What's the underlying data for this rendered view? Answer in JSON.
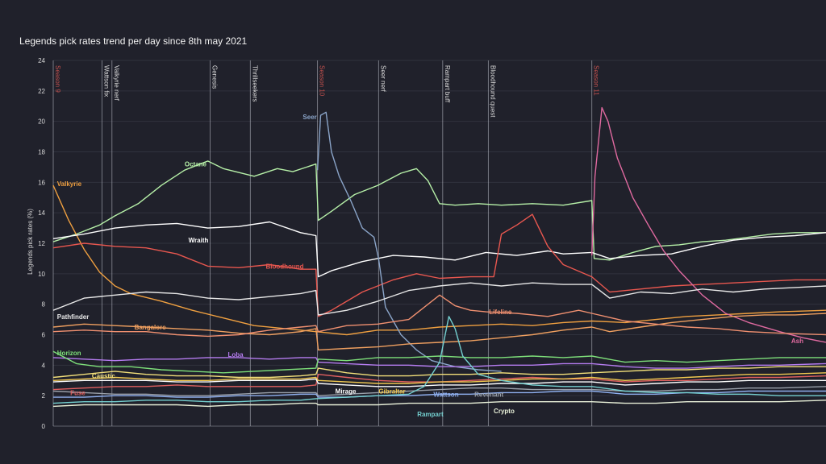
{
  "chart_data": {
    "type": "line",
    "title": "Legends pick rates trend per day since 8th may 2021",
    "xlabel": "",
    "ylabel": "Legends pick rates (%)",
    "ylim": [
      0,
      24
    ],
    "yticks": [
      0,
      2,
      4,
      6,
      8,
      10,
      12,
      14,
      16,
      18,
      20,
      22,
      24
    ],
    "xlim": [
      0,
      100
    ],
    "events": [
      {
        "x": 0,
        "label": "Season 9",
        "color": "#c0504d"
      },
      {
        "x": 6.3,
        "label": "Wattson fix",
        "color": "#d8d8d8"
      },
      {
        "x": 7.6,
        "label": "Valkyrie nerf",
        "color": "#d8d8d8"
      },
      {
        "x": 20.3,
        "label": "Genesis",
        "color": "#d8d8d8"
      },
      {
        "x": 25.5,
        "label": "Thrillseekers",
        "color": "#d8d8d8"
      },
      {
        "x": 34.2,
        "label": "Season 10",
        "color": "#c0504d"
      },
      {
        "x": 42.1,
        "label": "Seer nerf",
        "color": "#d8d8d8"
      },
      {
        "x": 50.4,
        "label": "Rampart buff",
        "color": "#d8d8d8"
      },
      {
        "x": 56.3,
        "label": "Bloodhound quest",
        "color": "#d8d8d8"
      },
      {
        "x": 69.7,
        "label": "Season 11",
        "color": "#c0504d"
      }
    ],
    "series": [
      {
        "name": "Octane",
        "color": "#b6f0a8",
        "label_at": [
          17,
          17.2
        ],
        "x": [
          0,
          3,
          6,
          8,
          11,
          14,
          17,
          20,
          22,
          26,
          29,
          31,
          34,
          34.3,
          36,
          39,
          42,
          45,
          47,
          48.5,
          50,
          52,
          55,
          58,
          62,
          66,
          69.7,
          70,
          72,
          75,
          78,
          81,
          84,
          87,
          90,
          93,
          96,
          100
        ],
        "y": [
          12.1,
          12.6,
          13.2,
          13.8,
          14.6,
          15.8,
          16.8,
          17.4,
          16.9,
          16.4,
          16.9,
          16.7,
          17.2,
          13.5,
          14.1,
          15.2,
          15.8,
          16.6,
          16.9,
          16.1,
          14.6,
          14.5,
          14.6,
          14.5,
          14.6,
          14.5,
          14.8,
          11.0,
          10.9,
          11.4,
          11.8,
          11.9,
          12.1,
          12.2,
          12.4,
          12.6,
          12.7,
          12.7
        ]
      },
      {
        "name": "Valkyrie",
        "color": "#f0a040",
        "label_at": [
          0.5,
          15.9
        ],
        "x": [
          0,
          2,
          4,
          6,
          8,
          10,
          14,
          18,
          22,
          26,
          30,
          34,
          38,
          42,
          46,
          50,
          54,
          58,
          62,
          66,
          69.7,
          74,
          78,
          82,
          86,
          90,
          94,
          100
        ],
        "y": [
          15.8,
          13.5,
          11.6,
          10.1,
          9.2,
          8.7,
          8.2,
          7.6,
          7.1,
          6.6,
          6.4,
          6.2,
          6.0,
          6.3,
          6.3,
          6.5,
          6.6,
          6.7,
          6.6,
          6.8,
          6.9,
          6.8,
          7.0,
          7.2,
          7.3,
          7.4,
          7.5,
          7.6
        ]
      },
      {
        "name": "Wraith",
        "color": "#ffffff",
        "label_at": [
          17.5,
          12.2
        ],
        "x": [
          0,
          4,
          8,
          12,
          16,
          20,
          24,
          28,
          32,
          34,
          34.3,
          36,
          40,
          44,
          48,
          52,
          56,
          60,
          64,
          66,
          69.7,
          72,
          76,
          80,
          84,
          88,
          92,
          96,
          100
        ],
        "y": [
          12.3,
          12.6,
          13.0,
          13.2,
          13.3,
          13.0,
          13.1,
          13.4,
          12.7,
          12.5,
          9.8,
          10.2,
          10.8,
          11.2,
          11.1,
          10.9,
          11.4,
          11.2,
          11.5,
          11.3,
          11.4,
          11.0,
          11.2,
          11.3,
          11.8,
          12.2,
          12.4,
          12.5,
          12.7
        ]
      },
      {
        "name": "Bloodhound",
        "color": "#e8574f",
        "label_at": [
          27.5,
          10.5
        ],
        "x": [
          0,
          4,
          8,
          12,
          16,
          20,
          24,
          28,
          32,
          34,
          34.3,
          36,
          40,
          44,
          47,
          50,
          54,
          57,
          58,
          60,
          62,
          64,
          66,
          69.7,
          72,
          76,
          80,
          84,
          88,
          92,
          96,
          100
        ],
        "y": [
          11.7,
          12.0,
          11.8,
          11.7,
          11.3,
          10.5,
          10.4,
          10.6,
          10.3,
          10.3,
          7.2,
          7.6,
          8.8,
          9.6,
          10.0,
          9.7,
          9.8,
          9.8,
          12.6,
          13.2,
          13.9,
          11.8,
          10.6,
          9.8,
          8.8,
          9.0,
          9.2,
          9.3,
          9.4,
          9.5,
          9.6,
          9.6
        ]
      },
      {
        "name": "Seer",
        "color": "#8aa4c8",
        "label_at": [
          32.3,
          20.3
        ],
        "x": [
          34.2,
          34.6,
          35.3,
          36.0,
          37.0,
          38.5,
          40.0,
          41.5,
          42.1,
          43,
          45,
          47,
          49,
          52,
          55,
          58
        ],
        "y": [
          16.8,
          20.4,
          20.6,
          18.0,
          16.4,
          14.8,
          13.0,
          12.4,
          11.0,
          7.8,
          6.0,
          5.0,
          4.3,
          3.9,
          3.7,
          3.6
        ]
      },
      {
        "name": "Ash",
        "color": "#e06aa0",
        "label_at": [
          95.5,
          5.6
        ],
        "x": [
          69.7,
          70.1,
          71.0,
          71.8,
          73,
          75,
          77,
          79,
          81,
          84,
          87,
          90,
          94,
          97,
          100
        ],
        "y": [
          11.2,
          16.4,
          20.9,
          20.0,
          17.6,
          15.0,
          13.2,
          11.5,
          10.2,
          8.6,
          7.4,
          6.8,
          6.2,
          5.8,
          5.5
        ]
      },
      {
        "name": "Pathfinder",
        "color": "#e8e8e8",
        "label_at": [
          0.5,
          7.2
        ],
        "x": [
          0,
          4,
          8,
          12,
          16,
          20,
          24,
          28,
          32,
          34,
          34.3,
          38,
          42,
          46,
          50,
          54,
          58,
          62,
          66,
          69.7,
          72,
          76,
          80,
          84,
          88,
          92,
          96,
          100
        ],
        "y": [
          7.6,
          8.4,
          8.6,
          8.8,
          8.7,
          8.4,
          8.3,
          8.5,
          8.7,
          8.9,
          7.3,
          7.6,
          8.2,
          8.9,
          9.2,
          9.4,
          9.2,
          9.4,
          9.3,
          9.3,
          8.4,
          8.8,
          8.7,
          9.0,
          8.8,
          9.0,
          9.1,
          9.2
        ]
      },
      {
        "name": "Bangalore",
        "color": "#f0a060",
        "label_at": [
          10.5,
          6.5
        ],
        "x": [
          0,
          4,
          8,
          12,
          16,
          20,
          24,
          28,
          32,
          34,
          34.3,
          38,
          42,
          46,
          50,
          54,
          58,
          62,
          66,
          69.7,
          72,
          76,
          80,
          84,
          88,
          92,
          96,
          100
        ],
        "y": [
          6.5,
          6.7,
          6.6,
          6.5,
          6.4,
          6.3,
          6.1,
          6.0,
          6.2,
          6.4,
          5.0,
          5.1,
          5.2,
          5.4,
          5.5,
          5.6,
          5.8,
          6.0,
          6.3,
          6.5,
          6.2,
          6.5,
          6.8,
          7.0,
          7.2,
          7.3,
          7.3,
          7.4
        ]
      },
      {
        "name": "Lifeline",
        "color": "#f09070",
        "label_at": [
          56.4,
          7.5
        ],
        "x": [
          0,
          4,
          8,
          12,
          16,
          20,
          24,
          28,
          32,
          34,
          34.3,
          38,
          42,
          46,
          50,
          52,
          54,
          56,
          60,
          64,
          68,
          69.7,
          74,
          78,
          82,
          86,
          90,
          94,
          100
        ],
        "y": [
          6.2,
          6.3,
          6.2,
          6.2,
          6.0,
          5.9,
          6.0,
          6.3,
          6.5,
          6.6,
          6.2,
          6.6,
          6.7,
          7.0,
          8.6,
          7.9,
          7.6,
          7.5,
          7.4,
          7.2,
          7.6,
          7.4,
          6.9,
          6.7,
          6.5,
          6.4,
          6.2,
          6.1,
          6.0
        ]
      },
      {
        "name": "Loba",
        "color": "#b57cf0",
        "label_at": [
          22.6,
          4.7
        ],
        "x": [
          0,
          4,
          8,
          12,
          16,
          20,
          24,
          28,
          32,
          34,
          34.3,
          38,
          42,
          46,
          50,
          54,
          58,
          62,
          66,
          69.7,
          74,
          78,
          82,
          86,
          90,
          94,
          100
        ],
        "y": [
          4.5,
          4.4,
          4.3,
          4.4,
          4.4,
          4.5,
          4.5,
          4.4,
          4.5,
          4.5,
          4.2,
          4.1,
          4.0,
          4.0,
          3.9,
          3.9,
          4.0,
          4.0,
          4.1,
          4.1,
          3.9,
          3.8,
          3.8,
          3.9,
          4.0,
          4.0,
          4.1
        ]
      },
      {
        "name": "Horizon",
        "color": "#7ee07a",
        "label_at": [
          0.5,
          4.8
        ],
        "x": [
          0,
          3,
          6,
          10,
          14,
          18,
          22,
          26,
          30,
          34,
          34.3,
          38,
          42,
          46,
          50,
          54,
          58,
          62,
          66,
          69.7,
          74,
          78,
          82,
          86,
          90,
          94,
          100
        ],
        "y": [
          4.9,
          4.1,
          3.9,
          3.9,
          3.7,
          3.6,
          3.5,
          3.6,
          3.7,
          3.8,
          4.4,
          4.3,
          4.5,
          4.5,
          4.6,
          4.5,
          4.5,
          4.6,
          4.5,
          4.6,
          4.2,
          4.3,
          4.2,
          4.3,
          4.4,
          4.5,
          4.5
        ]
      },
      {
        "name": "Caustic",
        "color": "#f3e07a",
        "label_at": [
          5.0,
          3.3
        ],
        "x": [
          0,
          4,
          8,
          12,
          16,
          20,
          24,
          28,
          32,
          34,
          34.3,
          38,
          42,
          46,
          50,
          54,
          58,
          62,
          66,
          69.7,
          74,
          78,
          82,
          86,
          90,
          94,
          100
        ],
        "y": [
          3.2,
          3.4,
          3.6,
          3.4,
          3.3,
          3.3,
          3.2,
          3.2,
          3.3,
          3.4,
          3.8,
          3.5,
          3.3,
          3.3,
          3.4,
          3.4,
          3.5,
          3.4,
          3.4,
          3.5,
          3.6,
          3.7,
          3.7,
          3.8,
          3.8,
          3.9,
          3.9
        ]
      },
      {
        "name": "Fuse",
        "color": "#e06060",
        "label_at": [
          2.2,
          2.2
        ],
        "x": [
          0,
          4,
          8,
          12,
          16,
          20,
          24,
          28,
          32,
          34,
          34.3,
          38,
          42,
          46,
          50,
          54,
          58,
          62,
          66,
          69.7,
          74,
          78,
          82,
          86,
          90,
          94,
          100
        ],
        "y": [
          2.4,
          2.5,
          2.6,
          2.6,
          2.7,
          2.6,
          2.6,
          2.6,
          2.6,
          2.7,
          3.4,
          3.2,
          3.0,
          2.9,
          2.9,
          3.0,
          3.1,
          3.2,
          3.1,
          3.1,
          2.9,
          3.0,
          3.0,
          3.1,
          3.2,
          3.2,
          3.3
        ]
      },
      {
        "name": "Mirage",
        "color": "#ffffff",
        "label_at": [
          36.5,
          2.3
        ],
        "x": [
          0,
          4,
          8,
          12,
          16,
          20,
          24,
          28,
          32,
          34,
          34.3,
          38,
          42,
          46,
          50,
          54,
          58,
          62,
          66,
          69.7,
          74,
          78,
          82,
          86,
          90,
          94,
          100
        ],
        "y": [
          2.9,
          3.0,
          3.0,
          3.0,
          2.9,
          2.9,
          3.0,
          3.0,
          3.0,
          3.1,
          2.8,
          2.7,
          2.6,
          2.6,
          2.7,
          2.7,
          2.8,
          2.8,
          2.9,
          2.9,
          2.7,
          2.8,
          2.9,
          2.9,
          3.0,
          3.0,
          3.0
        ]
      },
      {
        "name": "Gibraltar",
        "color": "#f0c850",
        "label_at": [
          42.1,
          2.3
        ],
        "x": [
          0,
          4,
          8,
          12,
          16,
          20,
          24,
          28,
          32,
          34,
          34.3,
          38,
          42,
          46,
          50,
          54,
          58,
          62,
          66,
          69.7,
          74,
          78,
          82,
          86,
          90,
          94,
          100
        ],
        "y": [
          3.0,
          3.1,
          3.2,
          3.1,
          3.0,
          3.0,
          3.1,
          3.1,
          3.1,
          3.2,
          3.0,
          2.9,
          2.8,
          2.8,
          2.9,
          2.9,
          3.0,
          3.1,
          3.1,
          3.2,
          3.0,
          3.1,
          3.2,
          3.3,
          3.4,
          3.4,
          3.5
        ]
      },
      {
        "name": "Wattson",
        "color": "#8fb0f0",
        "label_at": [
          49.2,
          2.1
        ],
        "x": [
          0,
          4,
          8,
          12,
          16,
          20,
          24,
          28,
          32,
          34,
          34.3,
          38,
          42,
          46,
          50,
          54,
          58,
          62,
          66,
          69.7,
          74,
          78,
          82,
          86,
          90,
          94,
          100
        ],
        "y": [
          1.9,
          1.9,
          2.0,
          2.0,
          1.9,
          1.9,
          2.0,
          2.0,
          2.1,
          2.1,
          1.9,
          1.9,
          2.0,
          2.0,
          2.1,
          2.1,
          2.2,
          2.2,
          2.3,
          2.3,
          2.1,
          2.1,
          2.2,
          2.2,
          2.3,
          2.3,
          2.3
        ]
      },
      {
        "name": "Revenant",
        "color": "#9aa0aa",
        "label_at": [
          54.5,
          2.1
        ],
        "x": [
          0,
          4,
          8,
          12,
          16,
          20,
          24,
          28,
          32,
          34,
          34.3,
          38,
          42,
          46,
          50,
          54,
          58,
          62,
          66,
          69.7,
          74,
          78,
          82,
          86,
          90,
          94,
          100
        ],
        "y": [
          2.3,
          2.2,
          2.1,
          2.1,
          2.0,
          2.0,
          2.1,
          2.2,
          2.2,
          2.2,
          2.0,
          2.1,
          2.2,
          2.3,
          2.4,
          2.5,
          2.5,
          2.4,
          2.4,
          2.4,
          2.3,
          2.3,
          2.4,
          2.4,
          2.5,
          2.5,
          2.6
        ]
      },
      {
        "name": "Rampart",
        "color": "#74d0d0",
        "label_at": [
          47.1,
          0.8
        ],
        "x": [
          0,
          4,
          8,
          12,
          16,
          20,
          24,
          28,
          32,
          34,
          38,
          42,
          46,
          48,
          50,
          51.2,
          52,
          53,
          55,
          58,
          62,
          66,
          69.7,
          74,
          78,
          82,
          86,
          90,
          94,
          100
        ],
        "y": [
          1.5,
          1.6,
          1.6,
          1.7,
          1.7,
          1.6,
          1.6,
          1.7,
          1.7,
          1.8,
          1.9,
          2.0,
          2.1,
          2.6,
          4.2,
          7.2,
          6.4,
          4.6,
          3.4,
          3.0,
          2.7,
          2.6,
          2.6,
          2.3,
          2.2,
          2.2,
          2.1,
          2.1,
          2.0,
          2.0
        ]
      },
      {
        "name": "Crypto",
        "color": "#e8f0d8",
        "label_at": [
          57.0,
          1.0
        ],
        "x": [
          0,
          4,
          8,
          12,
          16,
          20,
          24,
          28,
          32,
          34,
          34.3,
          38,
          42,
          46,
          50,
          54,
          58,
          62,
          66,
          69.7,
          74,
          78,
          82,
          86,
          90,
          94,
          100
        ],
        "y": [
          1.3,
          1.4,
          1.4,
          1.4,
          1.4,
          1.3,
          1.4,
          1.4,
          1.5,
          1.5,
          1.4,
          1.4,
          1.4,
          1.5,
          1.5,
          1.5,
          1.6,
          1.6,
          1.6,
          1.6,
          1.5,
          1.5,
          1.6,
          1.6,
          1.6,
          1.6,
          1.7
        ]
      }
    ]
  }
}
